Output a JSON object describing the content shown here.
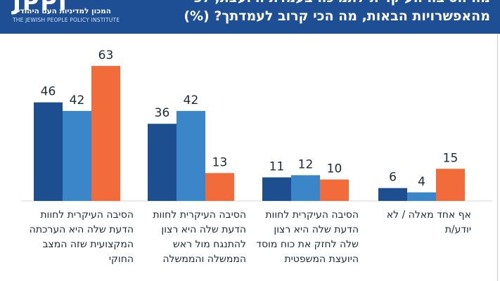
{
  "header": {
    "logo_mark": "JPPI",
    "logo_hebrew": "המכון למדיניות העם היהודי",
    "logo_english": "THE JEWISH PEOPLE POLICY INSTITUTE",
    "title_line1": "מה הסיבה העיקרית לתמיכה בעמדת היועצת, לפי",
    "title_line2": "מהאפשרויות הבאות, מה הכי קרוב לעמדתך? (%)"
  },
  "colors": {
    "header_bg": "#1e4e93",
    "series_dark": "#1d4e8f",
    "series_mid": "#3a86c8",
    "series_orange": "#f26b3a"
  },
  "chart_data": {
    "type": "bar",
    "title": "מהאפשרויות הבאות, מה הכי קרוב לעמדתך? (%)",
    "ylim": [
      0,
      70
    ],
    "grid": false,
    "categories": [
      "הסיבה העיקרית לחוות הדעת שלה היא הערכתה המקצועית שזה המצב החוקי",
      "הסיבה העיקרית לחוות הדעת שלה היא רצון להתנגח מול ראש הממשלה והממשלה",
      "הסיבה העיקרית לחוות הדעת שלה היא רצון שלה לחזק את כוח מוסד היועצת המשפטית",
      "אף אחד מאלה / לא יודע/ת"
    ],
    "series": [
      {
        "name": "series-dark",
        "values": [
          46,
          36,
          11,
          6
        ]
      },
      {
        "name": "series-mid",
        "values": [
          42,
          42,
          12,
          4
        ]
      },
      {
        "name": "series-orange",
        "values": [
          63,
          13,
          10,
          15
        ]
      }
    ]
  }
}
